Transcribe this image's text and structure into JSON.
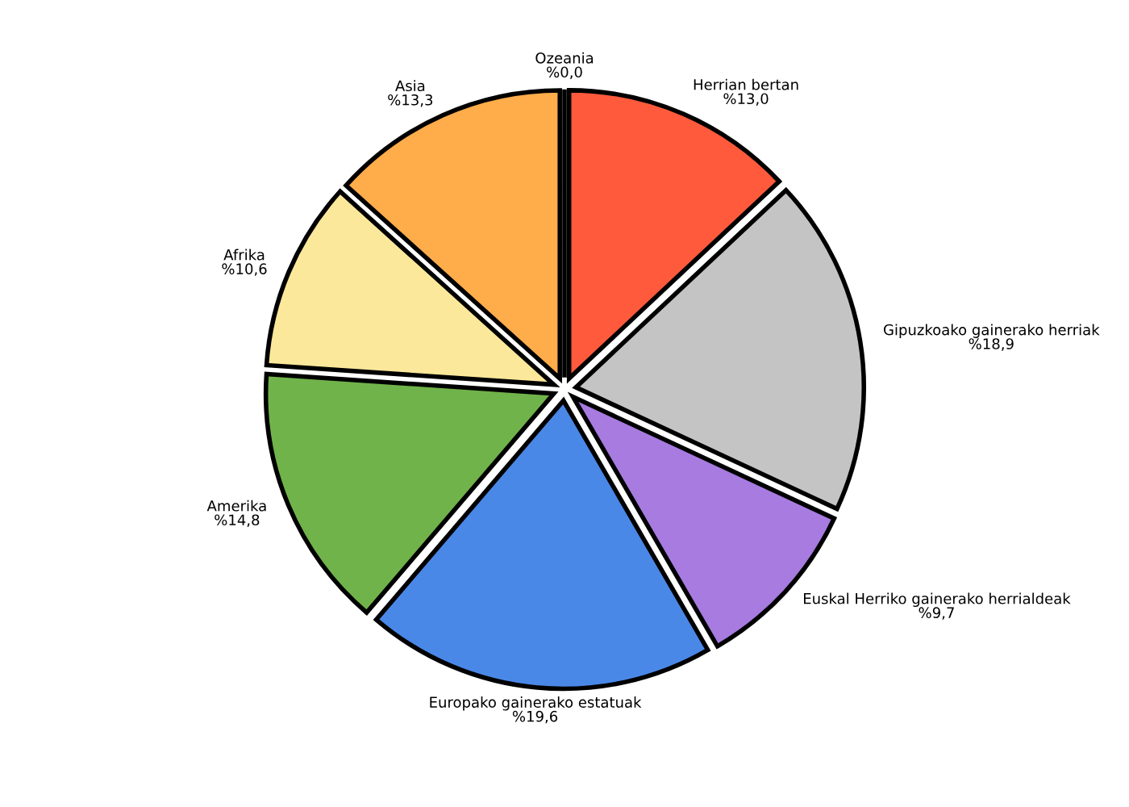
{
  "chart_data": {
    "type": "pie",
    "categories": [
      "Herrian bertan",
      "Gipuzkoako gainerako herriak",
      "Euskal Herriko gainerako herrialdeak",
      "Europako gainerako estatuak",
      "Amerika",
      "Afrika",
      "Asia",
      "Ozeania"
    ],
    "values": [
      13.0,
      18.9,
      9.7,
      19.6,
      14.8,
      10.6,
      13.3,
      0.0
    ],
    "value_labels": [
      "%13,0",
      "%18,9",
      "%9,7",
      "%19,6",
      "%14,8",
      "%10,6",
      "%13,3",
      "%0,0"
    ],
    "colors": [
      "#ff5a3c",
      "#c4c4c4",
      "#a77be0",
      "#4a88e8",
      "#70b34a",
      "#fbe89a",
      "#ffac4a",
      "#333333"
    ]
  }
}
